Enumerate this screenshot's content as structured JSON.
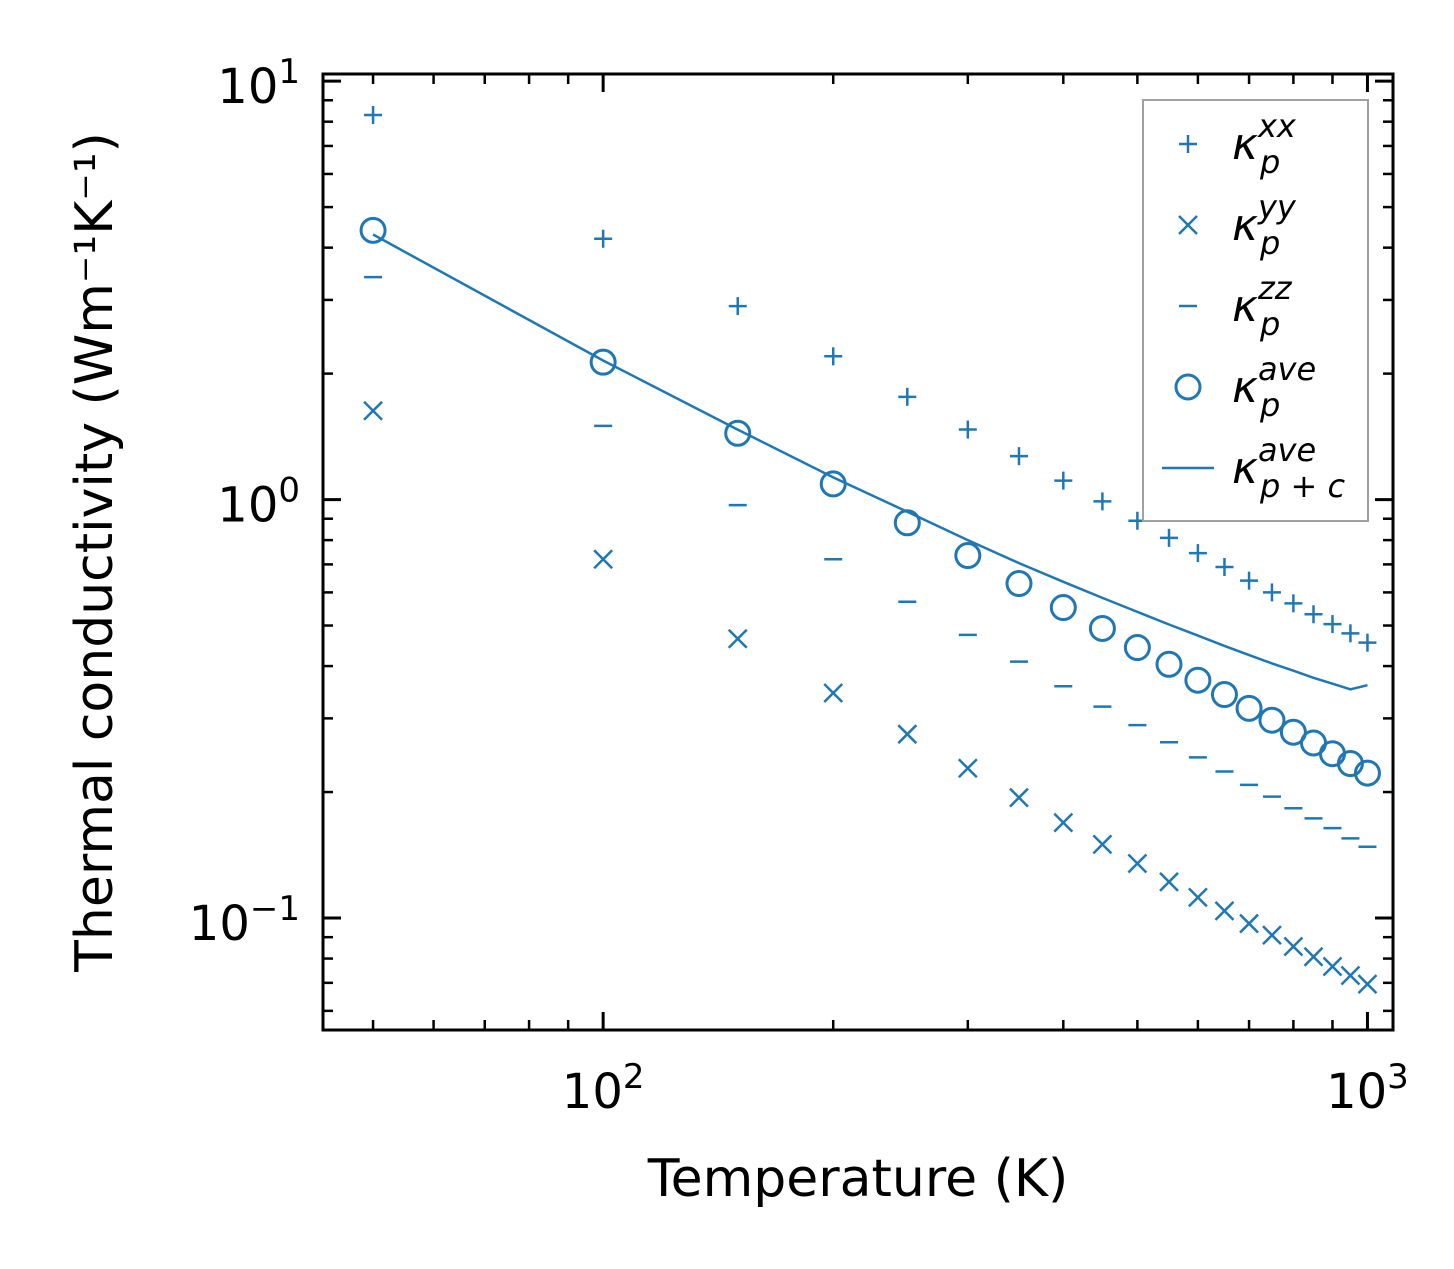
{
  "chart_data": {
    "type": "scatter",
    "xscale": "log",
    "yscale": "log",
    "xlabel": "Temperature (K)",
    "ylabel": "Thermal conductivity (Wm⁻¹K⁻¹)",
    "xlim": [
      43,
      1080
    ],
    "ylim": [
      0.054,
      10.4
    ],
    "x_ticks": [
      {
        "value": 100,
        "base": "10",
        "exp": "2"
      },
      {
        "value": 1000,
        "base": "10",
        "exp": "3"
      }
    ],
    "y_ticks": [
      {
        "value": 0.1,
        "base": "10",
        "exp": "−1"
      },
      {
        "value": 1,
        "base": "10",
        "exp": "0"
      },
      {
        "value": 10,
        "base": "10",
        "exp": "1"
      }
    ],
    "color": "#1f77b4",
    "x": [
      50,
      100,
      150,
      200,
      250,
      300,
      350,
      400,
      450,
      500,
      550,
      600,
      650,
      700,
      750,
      800,
      850,
      900,
      950,
      1000
    ],
    "series": [
      {
        "name": "kappa_p_xx",
        "marker": "plus",
        "values": [
          8.3,
          4.2,
          2.9,
          2.2,
          1.76,
          1.47,
          1.27,
          1.11,
          0.99,
          0.89,
          0.81,
          0.745,
          0.69,
          0.64,
          0.6,
          0.565,
          0.532,
          0.504,
          0.479,
          0.455
        ]
      },
      {
        "name": "kappa_p_yy",
        "marker": "x",
        "values": [
          1.63,
          0.72,
          0.465,
          0.345,
          0.275,
          0.228,
          0.194,
          0.169,
          0.15,
          0.135,
          0.122,
          0.112,
          0.104,
          0.097,
          0.091,
          0.0855,
          0.0808,
          0.0766,
          0.0729,
          0.0695
        ]
      },
      {
        "name": "kappa_p_zz",
        "marker": "hline",
        "values": [
          3.4,
          1.5,
          0.97,
          0.72,
          0.57,
          0.475,
          0.41,
          0.358,
          0.32,
          0.289,
          0.263,
          0.242,
          0.224,
          0.208,
          0.195,
          0.183,
          0.173,
          0.164,
          0.155,
          0.148
        ]
      },
      {
        "name": "kappa_p_ave",
        "marker": "circle",
        "values": [
          4.4,
          2.13,
          1.44,
          1.09,
          0.88,
          0.735,
          0.63,
          0.552,
          0.492,
          0.443,
          0.404,
          0.37,
          0.342,
          0.317,
          0.297,
          0.278,
          0.262,
          0.247,
          0.234,
          0.222
        ]
      },
      {
        "name": "kappa_pc_ave",
        "marker": "line",
        "values": [
          4.3,
          2.15,
          1.47,
          1.13,
          0.935,
          0.8,
          0.705,
          0.636,
          0.582,
          0.539,
          0.503,
          0.473,
          0.447,
          0.425,
          0.406,
          0.39,
          0.375,
          0.363,
          0.352,
          0.36
        ]
      }
    ],
    "legend": {
      "position": "top-right",
      "entries": [
        {
          "marker": "plus",
          "symbol": "κ",
          "sub": "p",
          "sup": "xx"
        },
        {
          "marker": "x",
          "symbol": "κ",
          "sub": "p",
          "sup": "yy"
        },
        {
          "marker": "hline",
          "symbol": "κ",
          "sub": "p",
          "sup": "zz"
        },
        {
          "marker": "circle",
          "symbol": "κ",
          "sub": "p",
          "sup": "ave"
        },
        {
          "marker": "line",
          "symbol": "κ",
          "sub": "p + c",
          "sup": "ave"
        }
      ]
    }
  }
}
